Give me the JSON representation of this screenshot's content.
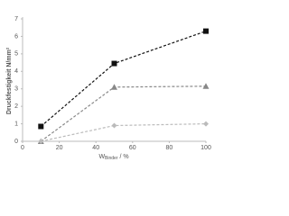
{
  "chart_data": {
    "type": "line",
    "y_label": "Druckfestigkeit N/mm²",
    "x_label": {
      "main": "W",
      "sub": "Binder",
      "unit": " / %"
    },
    "xlim": [
      0,
      100
    ],
    "xticks": [
      0,
      20,
      40,
      60,
      80,
      100
    ],
    "ylim": [
      0,
      7
    ],
    "yticks": [
      0,
      1,
      2,
      3,
      4,
      5,
      6,
      7
    ],
    "grid": false,
    "x": [
      10,
      50,
      100
    ],
    "series": [
      {
        "color": "#111111",
        "marker": "square",
        "values": [
          0.85,
          4.45,
          6.3
        ]
      },
      {
        "color": "#888888",
        "marker": "triangle",
        "values": [
          0,
          3.1,
          3.15
        ]
      },
      {
        "color": "#bbbbbb",
        "marker": "diamond",
        "values": [
          0,
          0.9,
          1.0
        ]
      }
    ]
  }
}
